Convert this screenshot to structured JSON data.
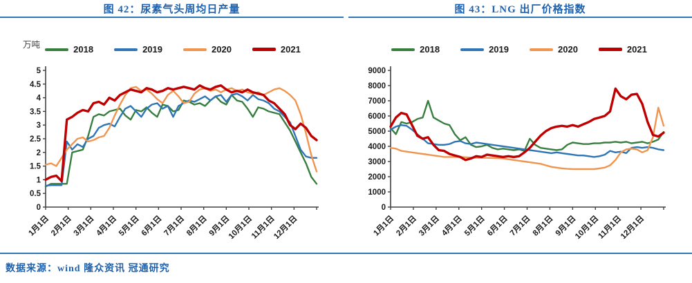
{
  "palette": {
    "title_blue": "#1f62ae",
    "rule_blue": "#2e75b6",
    "axis_color": "#404040",
    "green_2018": "#377e3f",
    "blue_2019": "#2e75b6",
    "orange_2020": "#f0944e",
    "red_2021": "#c00000"
  },
  "footer": {
    "text": "数据来源：wind 隆众资讯 冠通研究"
  },
  "chart_data": [
    {
      "type": "line",
      "title": "图 42：尿素气头周均日产量",
      "ylabel": "万吨",
      "ylim": [
        0,
        5
      ],
      "ytick_step": 0.5,
      "grid": false,
      "legend_position": "top",
      "x_resolution": "weekly (52 estimated points per year)",
      "x_tick_labels": [
        "1月1日",
        "2月1日",
        "3月1日",
        "4月1日",
        "5月1日",
        "6月1日",
        "7月1日",
        "8月1日",
        "9月1日",
        "10月1日",
        "11月1日",
        "12月1日"
      ],
      "series": [
        {
          "name": "2018",
          "color": "#377e3f",
          "width": 2.4,
          "values": [
            0.75,
            0.85,
            0.85,
            0.85,
            0.85,
            2.0,
            2.05,
            2.1,
            2.6,
            3.3,
            3.4,
            3.35,
            3.5,
            3.55,
            3.6,
            3.35,
            3.2,
            3.55,
            3.5,
            3.65,
            3.45,
            3.3,
            3.75,
            3.7,
            3.5,
            3.55,
            3.9,
            3.85,
            3.75,
            3.8,
            3.7,
            3.9,
            4.05,
            3.85,
            3.75,
            4.1,
            3.9,
            3.85,
            3.6,
            3.3,
            3.65,
            3.6,
            3.5,
            3.45,
            3.4,
            3.1,
            2.8,
            2.4,
            2.0,
            1.6,
            1.1,
            0.85
          ]
        },
        {
          "name": "2019",
          "color": "#2e75b6",
          "width": 2.4,
          "values": [
            0.78,
            0.8,
            0.8,
            0.8,
            2.4,
            2.1,
            2.3,
            2.2,
            2.5,
            2.6,
            2.9,
            3.0,
            3.05,
            2.95,
            3.3,
            3.6,
            3.7,
            3.5,
            3.3,
            3.6,
            3.75,
            3.8,
            3.6,
            3.7,
            3.3,
            3.7,
            3.8,
            3.9,
            3.85,
            3.95,
            4.05,
            3.9,
            4.05,
            4.1,
            3.85,
            4.1,
            4.15,
            4.05,
            3.9,
            4.1,
            3.95,
            3.9,
            3.8,
            3.6,
            3.5,
            3.3,
            3.1,
            2.6,
            2.1,
            1.85,
            1.8,
            1.8
          ]
        },
        {
          "name": "2020",
          "color": "#f0944e",
          "width": 2.4,
          "values": [
            1.55,
            1.6,
            1.5,
            1.8,
            2.1,
            2.3,
            2.5,
            2.55,
            2.4,
            2.45,
            2.55,
            2.6,
            2.9,
            3.35,
            3.75,
            4.1,
            4.35,
            4.4,
            4.25,
            4.3,
            4.15,
            3.95,
            3.8,
            4.1,
            4.25,
            4.05,
            3.8,
            3.85,
            4.15,
            4.3,
            4.35,
            4.25,
            4.3,
            4.2,
            4.3,
            4.35,
            4.25,
            4.3,
            4.2,
            4.15,
            4.2,
            4.1,
            4.2,
            4.3,
            4.35,
            4.25,
            4.1,
            3.9,
            3.4,
            2.7,
            1.9,
            1.3
          ]
        },
        {
          "name": "2021",
          "color": "#c00000",
          "width": 3.4,
          "values": [
            1.0,
            1.1,
            1.15,
            0.95,
            3.2,
            3.3,
            3.45,
            3.55,
            3.5,
            3.8,
            3.85,
            3.75,
            4.0,
            3.9,
            4.1,
            4.2,
            4.3,
            4.25,
            4.2,
            4.35,
            4.3,
            4.2,
            4.25,
            4.35,
            4.3,
            4.35,
            4.4,
            4.35,
            4.3,
            4.45,
            4.35,
            4.3,
            4.4,
            4.45,
            4.3,
            4.2,
            4.25,
            4.2,
            4.3,
            4.2,
            4.15,
            4.1,
            3.9,
            3.8,
            3.6,
            3.4,
            3.0,
            2.85,
            3.05,
            2.9,
            2.6,
            2.45
          ]
        }
      ]
    },
    {
      "type": "line",
      "title": "图 43：LNG 出厂价格指数",
      "ylabel": "",
      "ylim": [
        0,
        9000
      ],
      "ytick_step": 1000,
      "grid": false,
      "legend_position": "top",
      "x_resolution": "weekly (52 estimated points per year)",
      "x_tick_labels": [
        "1月1日",
        "2月1日",
        "3月1日",
        "4月1日",
        "5月1日",
        "6月1日",
        "7月1日",
        "8月1日",
        "9月1日",
        "10月1日",
        "11月1日",
        "12月1日"
      ],
      "series": [
        {
          "name": "2018",
          "color": "#377e3f",
          "width": 2.4,
          "values": [
            5200,
            4800,
            5600,
            5500,
            5600,
            5800,
            5900,
            7000,
            5900,
            5700,
            5500,
            5400,
            4800,
            4400,
            4600,
            4100,
            3950,
            4000,
            4100,
            3900,
            3800,
            3850,
            3800,
            3750,
            3800,
            3700,
            4500,
            4100,
            3900,
            3850,
            3800,
            3750,
            3800,
            4100,
            4250,
            4200,
            4150,
            4150,
            4200,
            4200,
            4250,
            4250,
            4300,
            4250,
            4300,
            4200,
            4250,
            4300,
            4200,
            4300,
            4450,
            4950
          ]
        },
        {
          "name": "2019",
          "color": "#2e75b6",
          "width": 2.4,
          "values": [
            5100,
            5300,
            5400,
            5350,
            5100,
            4800,
            4500,
            4200,
            4150,
            4100,
            4100,
            4150,
            4300,
            4350,
            4200,
            4150,
            4250,
            4200,
            4150,
            4100,
            4050,
            4000,
            3950,
            3900,
            3850,
            3800,
            3750,
            3700,
            3650,
            3600,
            3550,
            3600,
            3550,
            3500,
            3450,
            3400,
            3400,
            3350,
            3300,
            3350,
            3450,
            3700,
            3600,
            3650,
            3550,
            3900,
            3950,
            3900,
            3950,
            3900,
            3800,
            3750
          ]
        },
        {
          "name": "2020",
          "color": "#f0944e",
          "width": 2.4,
          "values": [
            3900,
            3850,
            3700,
            3650,
            3600,
            3550,
            3500,
            3450,
            3400,
            3350,
            3300,
            3300,
            3300,
            3300,
            3280,
            3260,
            3250,
            3250,
            3240,
            3230,
            3220,
            3200,
            3150,
            3100,
            3050,
            3000,
            2950,
            2900,
            2850,
            2750,
            2650,
            2600,
            2550,
            2520,
            2500,
            2500,
            2500,
            2500,
            2500,
            2550,
            2600,
            2750,
            3100,
            3600,
            3800,
            3850,
            3800,
            3600,
            3750,
            4600,
            6550,
            5350
          ]
        },
        {
          "name": "2021",
          "color": "#c00000",
          "width": 3.4,
          "values": [
            5300,
            5900,
            6200,
            6100,
            5400,
            4700,
            4500,
            4600,
            4100,
            3750,
            3700,
            3500,
            3400,
            3300,
            3100,
            3200,
            3350,
            3300,
            3450,
            3400,
            3350,
            3300,
            3350,
            3300,
            3350,
            3600,
            3900,
            4300,
            4700,
            5000,
            5200,
            5300,
            5350,
            5300,
            5400,
            5300,
            5450,
            5600,
            5800,
            5900,
            6000,
            6300,
            7800,
            7300,
            7100,
            7400,
            7450,
            6800,
            5600,
            4750,
            4650,
            4900
          ]
        }
      ]
    }
  ]
}
